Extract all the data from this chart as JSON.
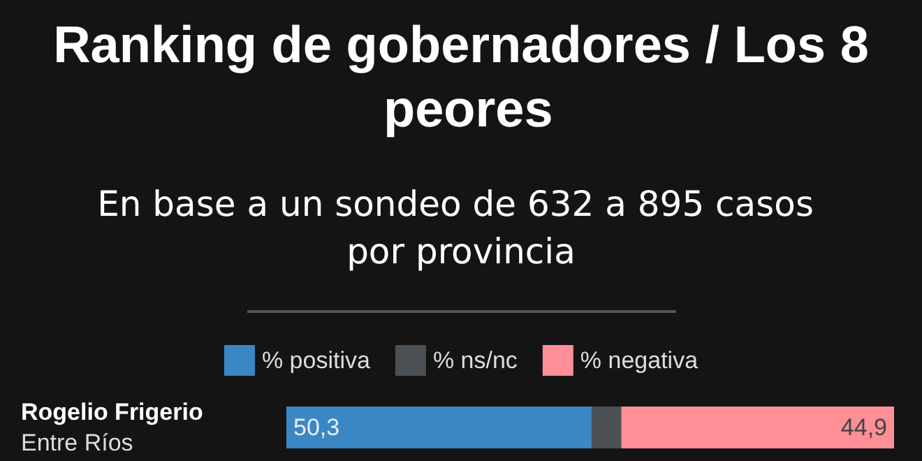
{
  "chart_data": {
    "type": "bar",
    "orientation": "horizontal",
    "stacked": true,
    "title": "Ranking de gobernadores / Los 8 peores",
    "subtitle": "En base a un sondeo de 632 a 895 casos por provincia",
    "categories": [
      "Rogelio Frigerio\nEntre Ríos"
    ],
    "xlim": [
      0,
      100
    ],
    "tick_labels": "y",
    "legend": "top",
    "series": [
      {
        "name": "% positiva",
        "color": "#3a87c4",
        "values": [
          50.3
        ],
        "value_labels": [
          "50,3"
        ]
      },
      {
        "name": "% ns/nc",
        "color": "#4b5054",
        "values": [
          4.8
        ],
        "value_labels": [
          null
        ]
      },
      {
        "name": "% negativa",
        "color": "#ff8f96",
        "values": [
          44.9
        ],
        "value_labels": [
          "44,9"
        ]
      }
    ]
  }
}
